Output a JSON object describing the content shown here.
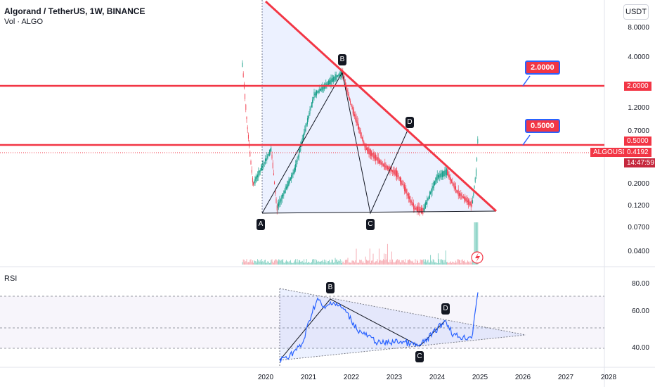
{
  "header": {
    "title": "Algorand / TetherUS, 1W, BINANCE",
    "volume_label": "Vol · ALGO",
    "currency_button": "USDT"
  },
  "price_axis": {
    "ticks": [
      "8.0000",
      "4.0000",
      "2.0000",
      "1.2000",
      "0.7000",
      "0.5000",
      "0.4192",
      "0.2000",
      "0.1200",
      "0.0700",
      "0.0400"
    ],
    "current_price": "0.4192",
    "symbol_tag": "ALGOUSDT",
    "countdown": "14:47:59",
    "level_high_tag": "2.0000",
    "level_low_tag": "0.5000"
  },
  "callouts": {
    "high": "2.0000",
    "low": "0.5000"
  },
  "pattern_points": {
    "a": "A",
    "b": "B",
    "c": "C",
    "d": "D"
  },
  "rsi": {
    "label": "RSI",
    "ticks": [
      "80.00",
      "60.00",
      "40.00"
    ],
    "points": {
      "b": "B",
      "c": "C",
      "d": "D"
    }
  },
  "time_axis": {
    "ticks": [
      "2020",
      "2021",
      "2022",
      "2023",
      "2024",
      "2025",
      "2026",
      "2027",
      "2028"
    ]
  },
  "colors": {
    "accent": "#f23645",
    "callout_border": "#2962ff",
    "rsi_line": "#2962ff",
    "candle_up": "#089981",
    "candle_down": "#f23645"
  }
}
